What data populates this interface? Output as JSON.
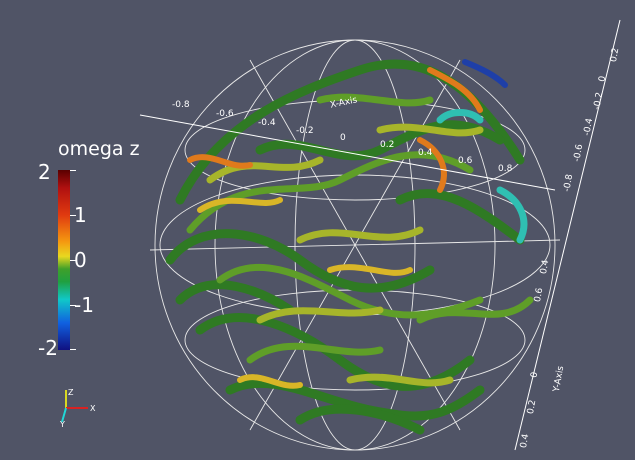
{
  "colorbar": {
    "title": "omega z",
    "labels": [
      "2",
      "1",
      "0",
      "-1",
      "-2"
    ]
  },
  "axes": {
    "x_title": "X-Axis",
    "y_title": "Y-Axis",
    "x_ticks": [
      "-0.8",
      "-0.6",
      "-0.4",
      "-0.2",
      "0",
      "0.2",
      "0.4",
      "0.6",
      "0.8"
    ],
    "y_ticks_right": [
      "-0.8",
      "-0.6",
      "-0.4",
      "-0.2",
      "0",
      "0.2",
      "0.4",
      "0.6"
    ],
    "y_ticks_bottom": [
      "0",
      "0.2",
      "0.4"
    ]
  },
  "orientation": {
    "z": "Z",
    "x": "X",
    "y": "Y"
  },
  "colors": {
    "background": "#505466",
    "accent": "#ffffff"
  }
}
